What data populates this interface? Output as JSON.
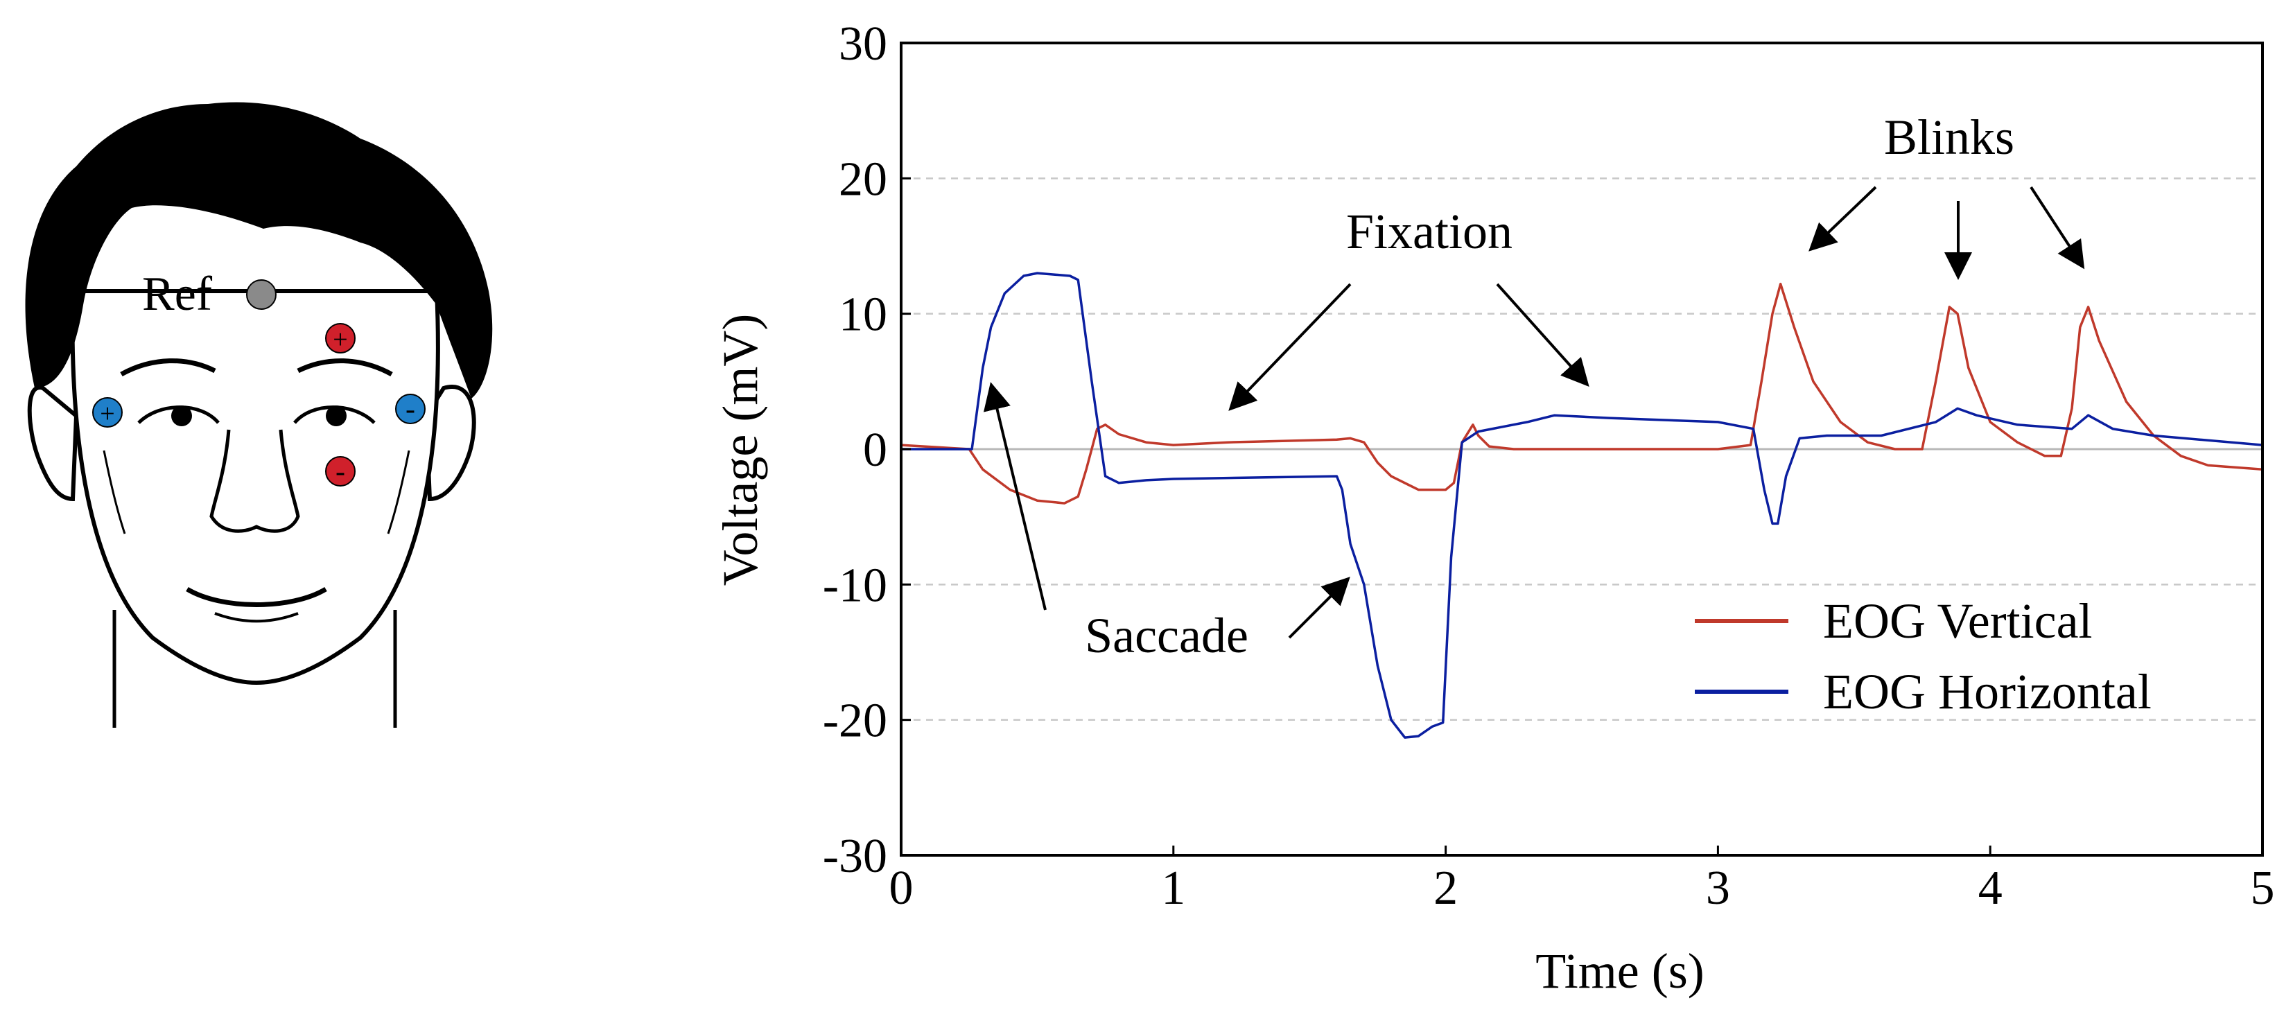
{
  "face": {
    "ref_label": "Ref",
    "electrodes": [
      {
        "id": "ref",
        "sign": "",
        "color": "#8a8a8a"
      },
      {
        "id": "vertical-plus",
        "sign": "+",
        "color": "#d0202b"
      },
      {
        "id": "vertical-minus",
        "sign": "-",
        "color": "#d0202b"
      },
      {
        "id": "horizontal-plus",
        "sign": "+",
        "color": "#1f7fc9"
      },
      {
        "id": "horizontal-minus",
        "sign": "-",
        "color": "#1f7fc9"
      }
    ]
  },
  "chart_data": {
    "type": "line",
    "title": "",
    "xlabel": "Time (s)",
    "ylabel": "Voltage (mV)",
    "xlim": [
      0,
      5
    ],
    "ylim": [
      -30,
      30
    ],
    "xticks": [
      0,
      1,
      2,
      3,
      4,
      5
    ],
    "yticks": [
      30,
      20,
      10,
      0,
      -10,
      -20,
      -30
    ],
    "grid": "horizontal dashed",
    "legend_position": "bottom-right",
    "series": [
      {
        "name": "EOG Vertical",
        "color": "#c0392b",
        "x": [
          0,
          0.25,
          0.3,
          0.4,
          0.5,
          0.6,
          0.65,
          0.68,
          0.72,
          0.75,
          0.8,
          0.9,
          1.0,
          1.2,
          1.4,
          1.6,
          1.65,
          1.7,
          1.75,
          1.8,
          1.9,
          2.0,
          2.03,
          2.06,
          2.1,
          2.12,
          2.16,
          2.25,
          2.5,
          3.0,
          3.12,
          3.16,
          3.2,
          3.23,
          3.28,
          3.35,
          3.45,
          3.55,
          3.65,
          3.75,
          3.8,
          3.85,
          3.88,
          3.92,
          4.0,
          4.1,
          4.2,
          4.26,
          4.3,
          4.33,
          4.36,
          4.4,
          4.5,
          4.6,
          4.7,
          4.8,
          5.0
        ],
        "values": [
          0.3,
          0,
          -1.5,
          -3,
          -3.8,
          -4,
          -3.5,
          -1.5,
          1.5,
          1.8,
          1.1,
          0.5,
          0.3,
          0.5,
          0.6,
          0.7,
          0.8,
          0.5,
          -1,
          -2,
          -3,
          -3,
          -2.5,
          0.5,
          1.8,
          1,
          0.2,
          0,
          0,
          0,
          0.3,
          5,
          10,
          12.2,
          9,
          5,
          2,
          0.5,
          0,
          0,
          5,
          10.5,
          10,
          6,
          2,
          0.5,
          -0.5,
          -0.5,
          3,
          9,
          10.5,
          8,
          3.5,
          1,
          -0.5,
          -1.2,
          -1.5
        ]
      },
      {
        "name": "EOG Horizontal",
        "color": "#0b1fa0",
        "x": [
          0,
          0.26,
          0.3,
          0.33,
          0.38,
          0.45,
          0.5,
          0.62,
          0.65,
          0.7,
          0.75,
          0.8,
          0.9,
          1.0,
          1.3,
          1.6,
          1.62,
          1.65,
          1.7,
          1.75,
          1.8,
          1.85,
          1.9,
          1.95,
          1.99,
          2.02,
          2.06,
          2.12,
          2.3,
          2.4,
          2.6,
          3.0,
          3.13,
          3.17,
          3.2,
          3.22,
          3.25,
          3.3,
          3.4,
          3.6,
          3.8,
          3.88,
          3.95,
          4.1,
          4.3,
          4.36,
          4.45,
          4.6,
          5.0
        ],
        "values": [
          0,
          0,
          6,
          9,
          11.5,
          12.8,
          13,
          12.8,
          12.5,
          5,
          -2,
          -2.5,
          -2.3,
          -2.2,
          -2.1,
          -2,
          -3,
          -7,
          -10,
          -16,
          -20,
          -21.3,
          -21.2,
          -20.5,
          -20.2,
          -8,
          0.5,
          1.3,
          2,
          2.5,
          2.3,
          2,
          1.5,
          -3,
          -5.5,
          -5.5,
          -2,
          0.8,
          1,
          1,
          2,
          3,
          2.5,
          1.8,
          1.5,
          2.5,
          1.5,
          1,
          0.3
        ]
      }
    ],
    "annotations": [
      "Fixation",
      "Blinks",
      "Saccade"
    ]
  }
}
